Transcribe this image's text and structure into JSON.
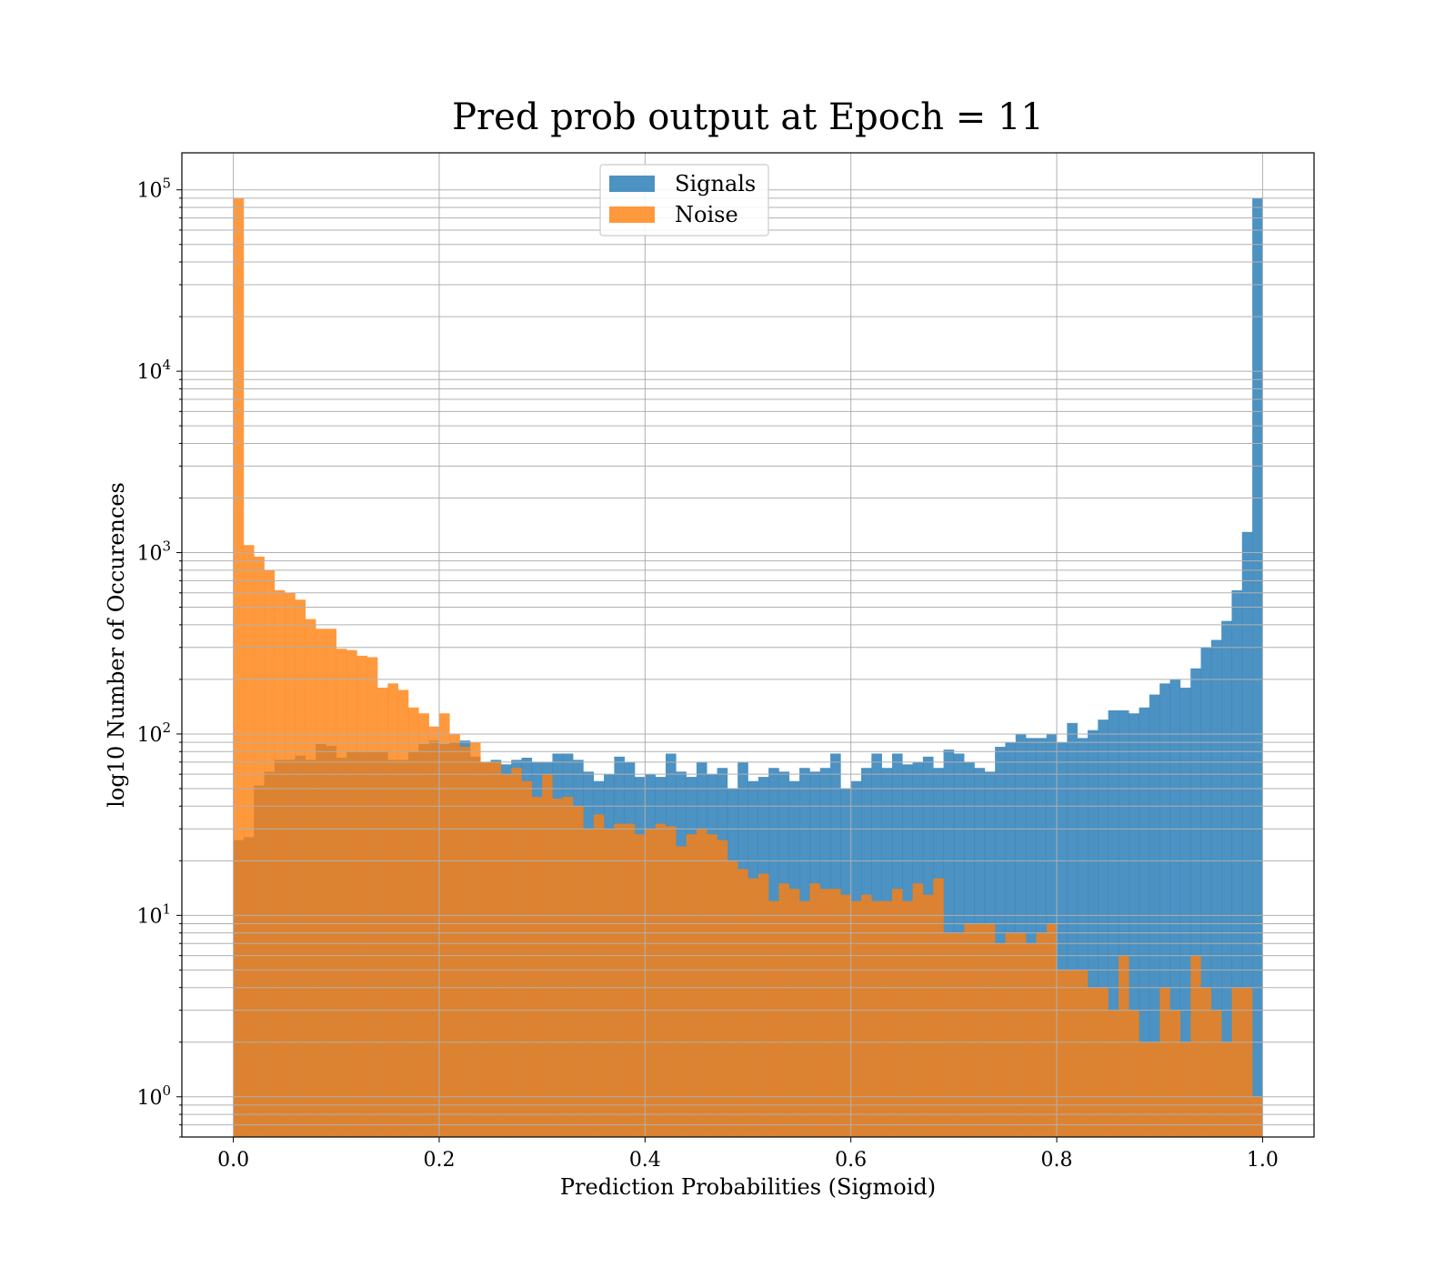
{
  "chart_data": {
    "type": "bar",
    "title": "Pred prob output at Epoch = 11",
    "xlabel": "Prediction Probabilities (Sigmoid)",
    "ylabel": "log10 Number of Occurences",
    "xlim": [
      -0.05,
      1.05
    ],
    "ylim": [
      0.6,
      160000
    ],
    "yscale": "log",
    "grid": true,
    "legend_position": "top-center",
    "x_ticks": [
      0.0,
      0.2,
      0.4,
      0.6,
      0.8,
      1.0
    ],
    "x_tick_labels": [
      "0.0",
      "0.2",
      "0.4",
      "0.6",
      "0.8",
      "1.0"
    ],
    "y_ticks": [
      {
        "value": 1,
        "base": "10",
        "exp": "0"
      },
      {
        "value": 10,
        "base": "10",
        "exp": "1"
      },
      {
        "value": 100,
        "base": "10",
        "exp": "2"
      },
      {
        "value": 1000,
        "base": "10",
        "exp": "3"
      },
      {
        "value": 10000,
        "base": "10",
        "exp": "4"
      },
      {
        "value": 100000,
        "base": "10",
        "exp": "5"
      }
    ],
    "bin_width": 0.01,
    "bin_start": 0.0,
    "series": [
      {
        "name": "Signals",
        "color": "#1f77b4",
        "values": [
          26,
          27,
          52,
          62,
          72,
          72,
          76,
          72,
          88,
          86,
          74,
          80,
          80,
          80,
          80,
          72,
          72,
          80,
          88,
          92,
          88,
          90,
          92,
          75,
          70,
          72,
          68,
          72,
          74,
          70,
          70,
          78,
          78,
          72,
          62,
          55,
          60,
          75,
          70,
          58,
          60,
          58,
          78,
          62,
          58,
          70,
          60,
          65,
          50,
          70,
          55,
          58,
          65,
          62,
          55,
          65,
          62,
          65,
          78,
          50,
          55,
          65,
          78,
          65,
          78,
          68,
          70,
          75,
          65,
          82,
          78,
          70,
          65,
          62,
          85,
          90,
          100,
          95,
          95,
          100,
          90,
          115,
          95,
          105,
          120,
          135,
          135,
          130,
          140,
          165,
          190,
          200,
          180,
          230,
          300,
          330,
          420,
          620,
          1300,
          90000
        ]
      },
      {
        "name": "Noise",
        "color": "#ff7f0e",
        "values": [
          90000,
          1100,
          950,
          800,
          620,
          600,
          550,
          430,
          380,
          380,
          295,
          290,
          270,
          265,
          180,
          190,
          175,
          140,
          130,
          110,
          130,
          100,
          85,
          90,
          70,
          70,
          60,
          65,
          55,
          45,
          60,
          44,
          45,
          40,
          30,
          36,
          30,
          32,
          32,
          28,
          30,
          32,
          31,
          24,
          28,
          30,
          28,
          26,
          20,
          18,
          16,
          17,
          12,
          15,
          14,
          12,
          15,
          14,
          14,
          13,
          12,
          13,
          12,
          12,
          14,
          12,
          15,
          13,
          16,
          8,
          8,
          9,
          9,
          9,
          7,
          8,
          8,
          7,
          8,
          9,
          5,
          5,
          5,
          4,
          4,
          3,
          6,
          3,
          2,
          2,
          4,
          3,
          2,
          6,
          4,
          3,
          2,
          4,
          4,
          1
        ]
      }
    ]
  }
}
